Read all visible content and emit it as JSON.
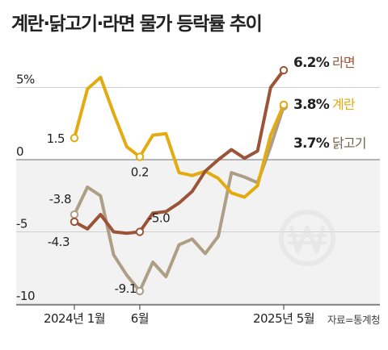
{
  "title": "계란·닭고기·라면 물가 등락률 추이",
  "source": "자료=통계청",
  "watermark": "won-sign-icon",
  "chart_data": {
    "type": "line",
    "title": "계란·닭고기·라면 물가 등락률 추이",
    "x": [
      "2024-01",
      "2024-02",
      "2024-03",
      "2024-04",
      "2024-05",
      "2024-06",
      "2024-07",
      "2024-08",
      "2024-09",
      "2024-10",
      "2024-11",
      "2024-12",
      "2025-01",
      "2025-02",
      "2025-03",
      "2025-04",
      "2025-05"
    ],
    "x_tick_labels": [
      {
        "x": "2024-01",
        "label": "2024년 1월"
      },
      {
        "x": "2024-06",
        "label": "6월"
      },
      {
        "x": "2025-05",
        "label": "2025년 5월"
      }
    ],
    "ylim": [
      -10.5,
      8
    ],
    "y_ticks": [
      {
        "value": 5,
        "label": "5%"
      },
      {
        "value": 0,
        "label": "0"
      },
      {
        "value": -5,
        "label": "-5"
      },
      {
        "value": -10,
        "label": "-10"
      }
    ],
    "negative_region_shaded": true,
    "series": [
      {
        "name": "라면",
        "color": "#9B5438",
        "values": [
          -4.3,
          -4.8,
          -3.8,
          -5.0,
          -5.1,
          -5.0,
          -3.7,
          -3.6,
          -3.0,
          -2.2,
          -0.8,
          0.0,
          0.7,
          0.1,
          0.6,
          5.0,
          6.2
        ],
        "labels": [
          {
            "index": 0,
            "text": "-4.3"
          },
          {
            "index": 5,
            "text": "-5.0"
          }
        ],
        "end_label": "6.2%"
      },
      {
        "name": "계란",
        "color": "#E3AB10",
        "values": [
          1.5,
          4.9,
          5.7,
          3.2,
          0.9,
          0.2,
          1.7,
          1.8,
          -0.9,
          -1.1,
          -0.8,
          -1.3,
          -2.3,
          -2.6,
          -1.8,
          1.7,
          3.8
        ],
        "labels": [
          {
            "index": 0,
            "text": "1.5"
          },
          {
            "index": 5,
            "text": "0.2"
          }
        ],
        "end_label": "3.8%"
      },
      {
        "name": "닭고기",
        "color": "#AE9E85",
        "values": [
          -3.8,
          -1.9,
          -2.5,
          -6.6,
          -8.0,
          -9.1,
          -7.1,
          -8.1,
          -5.9,
          -5.5,
          -6.5,
          -5.3,
          -0.9,
          -1.2,
          -1.6,
          0.9,
          3.7
        ],
        "labels": [
          {
            "index": 0,
            "text": "-3.8"
          },
          {
            "index": 5,
            "text": "-9.1"
          }
        ],
        "end_label": "3.7%"
      }
    ]
  }
}
